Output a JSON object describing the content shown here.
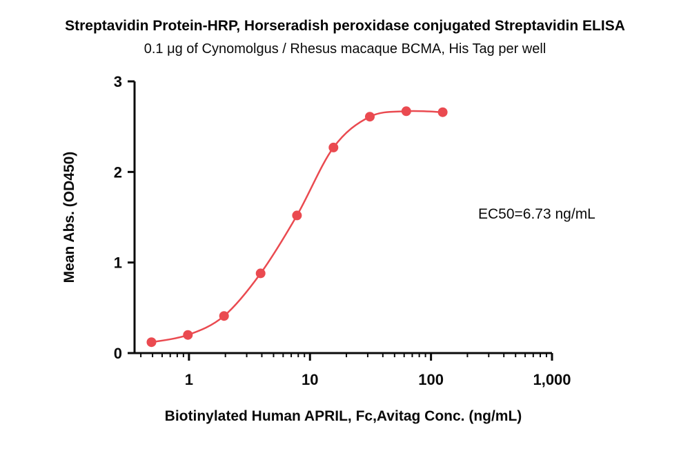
{
  "chart_data": {
    "type": "scatter",
    "title": "Streptavidin Protein-HRP, Horseradish peroxidase conjugated Streptavidin ELISA",
    "subtitle": "0.1 μg of Cynomolgus / Rhesus macaque BCMA, His Tag per well",
    "xlabel": "Biotinylated Human APRIL, Fc,Avitag Conc. (ng/mL)",
    "ylabel": "Mean Abs. (OD450)",
    "ec50_annotation": "EC50=6.73 ng/mL",
    "ec50": 6.73,
    "xscale": "log",
    "xlim": [
      0.355,
      1000
    ],
    "ylim": [
      0,
      3
    ],
    "x": [
      0.49,
      0.98,
      1.95,
      3.91,
      7.81,
      15.63,
      31.25,
      62.5,
      125
    ],
    "y": [
      0.12,
      0.2,
      0.41,
      0.88,
      1.52,
      2.27,
      2.61,
      2.67,
      2.66
    ],
    "xticks": [
      {
        "value": 1,
        "label": "1"
      },
      {
        "value": 10,
        "label": "10"
      },
      {
        "value": 100,
        "label": "100"
      },
      {
        "value": 1000,
        "label": "1,000"
      }
    ],
    "yticks": [
      {
        "value": 0,
        "label": "0"
      },
      {
        "value": 1,
        "label": "1"
      },
      {
        "value": 2,
        "label": "2"
      },
      {
        "value": 3,
        "label": "3"
      }
    ],
    "grid": false,
    "legend": "none",
    "point_color": "#ea4a50",
    "line_color": "#ea4a50",
    "axis_color": "#0a0a0a"
  }
}
